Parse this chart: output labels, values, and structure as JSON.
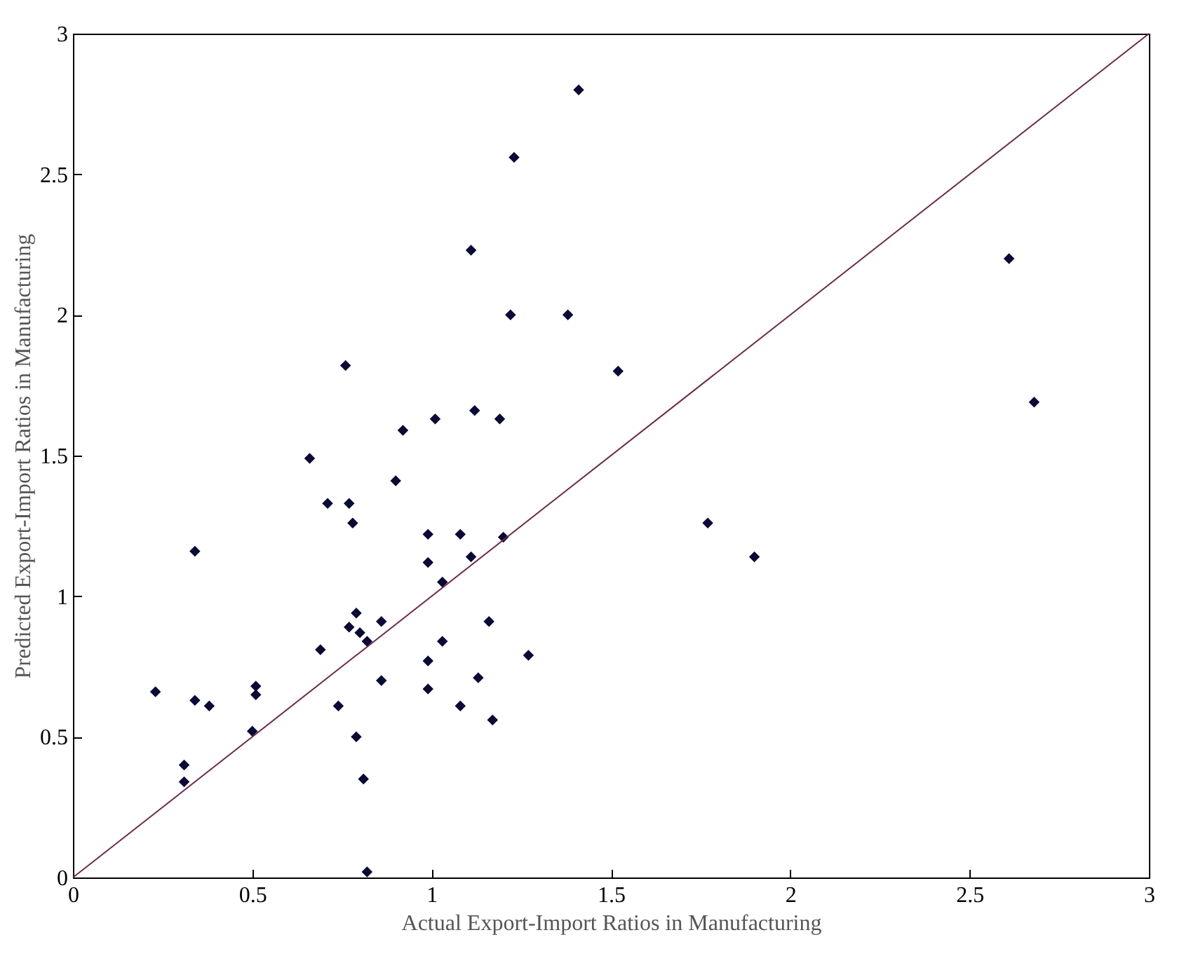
{
  "chart_data": {
    "type": "scatter",
    "xlabel": "Actual Export-Import Ratios in Manufacturing",
    "ylabel": "Predicted Export-Import Ratios in Manufacturing",
    "xlim": [
      0,
      3
    ],
    "ylim": [
      0,
      3
    ],
    "xticks": [
      0,
      0.5,
      1,
      1.5,
      2,
      2.5,
      3
    ],
    "yticks": [
      0,
      0.5,
      1,
      1.5,
      2,
      2.5,
      3
    ],
    "grid": false,
    "series": [
      {
        "marker": "diamond",
        "color": "#0a0a35",
        "x": [
          0.23,
          0.31,
          0.31,
          0.34,
          0.34,
          0.38,
          0.5,
          0.51,
          0.51,
          0.66,
          0.69,
          0.71,
          0.74,
          0.76,
          0.77,
          0.77,
          0.78,
          0.79,
          0.79,
          0.8,
          0.81,
          0.82,
          0.82,
          0.86,
          0.86,
          0.9,
          0.92,
          0.99,
          0.99,
          0.99,
          0.99,
          1.01,
          1.03,
          1.03,
          1.08,
          1.08,
          1.11,
          1.11,
          1.12,
          1.13,
          1.16,
          1.17,
          1.19,
          1.2,
          1.22,
          1.23,
          1.27,
          1.38,
          1.41,
          1.52,
          1.77,
          1.9,
          2.61,
          2.68
        ],
        "values": [
          0.66,
          0.4,
          0.34,
          1.16,
          0.63,
          0.61,
          0.52,
          0.68,
          0.65,
          1.49,
          0.81,
          1.33,
          0.61,
          1.82,
          0.89,
          1.33,
          1.26,
          0.94,
          0.5,
          0.87,
          0.35,
          0.02,
          0.84,
          0.91,
          0.7,
          1.41,
          1.59,
          1.22,
          1.12,
          0.77,
          0.67,
          1.63,
          1.05,
          0.84,
          1.22,
          0.61,
          1.14,
          2.23,
          1.66,
          0.71,
          0.91,
          0.56,
          1.63,
          1.21,
          2.0,
          2.56,
          0.79,
          2.0,
          2.8,
          1.8,
          1.26,
          1.14,
          2.2,
          1.69
        ]
      },
      {
        "type": "line",
        "color": "#6b2b4b",
        "x": [
          0,
          3
        ],
        "values": [
          0,
          3
        ],
        "line_style": "solid"
      }
    ]
  }
}
